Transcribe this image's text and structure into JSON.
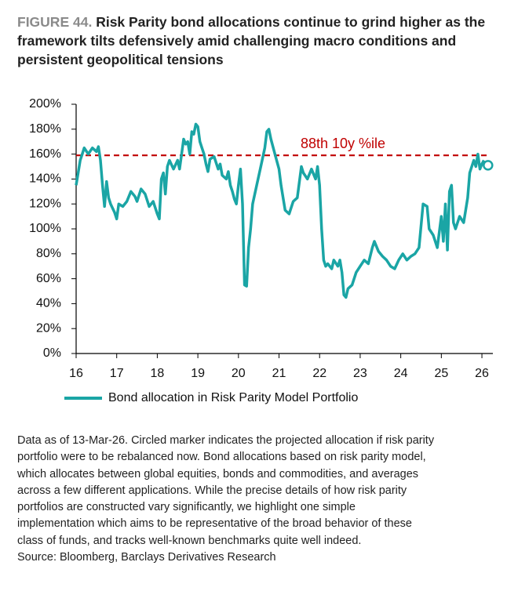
{
  "chart_data": {
    "type": "line",
    "title_label": "FIGURE 44.",
    "title": "Risk Parity bond allocations continue to grind higher as the framework tilts defensively amid challenging macro conditions and persistent geopolitical tensions",
    "xlim": [
      16,
      26.27
    ],
    "xticks": [
      16,
      17,
      18,
      19,
      20,
      21,
      22,
      23,
      24,
      25,
      26
    ],
    "ylim": [
      0,
      200
    ],
    "yticks": [
      {
        "value": 0,
        "label": "0%"
      },
      {
        "value": 20,
        "label": "20%"
      },
      {
        "value": 40,
        "label": "40%"
      },
      {
        "value": 60,
        "label": "60%"
      },
      {
        "value": 80,
        "label": "80%"
      },
      {
        "value": 100,
        "label": "100%"
      },
      {
        "value": 120,
        "label": "120%"
      },
      {
        "value": 140,
        "label": "140%"
      },
      {
        "value": 160,
        "label": "160%"
      },
      {
        "value": 180,
        "label": "180%"
      },
      {
        "value": 200,
        "label": "200%"
      }
    ],
    "series": [
      {
        "name": "Bond allocation in Risk Parity Model Portfolio",
        "color": "#1aa5a5",
        "x": [
          16.0,
          16.05,
          16.1,
          16.15,
          16.2,
          16.3,
          16.4,
          16.5,
          16.55,
          16.6,
          16.65,
          16.7,
          16.75,
          16.8,
          16.85,
          16.95,
          17.0,
          17.05,
          17.15,
          17.25,
          17.35,
          17.45,
          17.5,
          17.6,
          17.7,
          17.8,
          17.9,
          18.0,
          18.05,
          18.1,
          18.15,
          18.2,
          18.25,
          18.3,
          18.4,
          18.5,
          18.55,
          18.6,
          18.65,
          18.7,
          18.75,
          18.8,
          18.85,
          18.9,
          18.95,
          19.0,
          19.05,
          19.1,
          19.15,
          19.2,
          19.25,
          19.3,
          19.4,
          19.5,
          19.55,
          19.6,
          19.7,
          19.75,
          19.8,
          19.85,
          19.9,
          19.95,
          20.0,
          20.05,
          20.1,
          20.15,
          20.2,
          20.25,
          20.3,
          20.35,
          20.45,
          20.55,
          20.65,
          20.7,
          20.75,
          20.8,
          20.9,
          21.0,
          21.05,
          21.1,
          21.15,
          21.25,
          21.35,
          21.45,
          21.55,
          21.6,
          21.7,
          21.8,
          21.9,
          21.95,
          22.0,
          22.05,
          22.1,
          22.15,
          22.2,
          22.3,
          22.35,
          22.45,
          22.5,
          22.55,
          22.6,
          22.65,
          22.7,
          22.8,
          22.9,
          23.0,
          23.1,
          23.2,
          23.3,
          23.35,
          23.45,
          23.55,
          23.65,
          23.75,
          23.85,
          23.95,
          24.05,
          24.15,
          24.25,
          24.35,
          24.45,
          24.55,
          24.65,
          24.7,
          24.8,
          24.9,
          25.0,
          25.05,
          25.1,
          25.15,
          25.2,
          25.25,
          25.3,
          25.35,
          25.45,
          25.55,
          25.65,
          25.7,
          25.8,
          25.85,
          25.9,
          25.95,
          26.0,
          26.05
        ],
        "values": [
          135,
          145,
          155,
          160,
          165,
          160,
          165,
          162,
          166,
          155,
          135,
          118,
          138,
          125,
          120,
          113,
          108,
          120,
          118,
          122,
          130,
          126,
          122,
          132,
          128,
          118,
          122,
          112,
          108,
          140,
          145,
          128,
          150,
          155,
          148,
          155,
          148,
          160,
          172,
          168,
          170,
          160,
          178,
          176,
          184,
          182,
          170,
          165,
          160,
          152,
          146,
          156,
          158,
          148,
          152,
          143,
          140,
          146,
          135,
          130,
          124,
          120,
          135,
          148,
          120,
          55,
          54,
          85,
          100,
          120,
          135,
          150,
          165,
          178,
          180,
          172,
          160,
          148,
          135,
          125,
          115,
          112,
          122,
          125,
          150,
          145,
          140,
          148,
          140,
          150,
          135,
          100,
          75,
          70,
          72,
          68,
          75,
          70,
          75,
          65,
          47,
          45,
          52,
          55,
          65,
          70,
          75,
          72,
          85,
          90,
          82,
          78,
          75,
          70,
          68,
          75,
          80,
          75,
          78,
          80,
          85,
          120,
          118,
          100,
          95,
          85,
          110,
          90,
          120,
          83,
          130,
          135,
          105,
          100,
          110,
          105,
          125,
          145,
          155,
          150,
          160,
          148,
          152,
          155
        ]
      }
    ],
    "marker": {
      "x": 26.15,
      "y": 151
    },
    "ref_line": {
      "value": 159,
      "label": "88th 10y %ile",
      "color": "#c00000"
    },
    "notes": [
      "Data as of 13-Mar-26. Circled marker indicates the projected allocation if risk parity",
      "portfolio were to be rebalanced now. Bond allocations based on risk parity model,",
      "which allocates between global equities, bonds and commodities, and averages",
      "across a few different applications. While the precise details of how risk parity",
      "portfolios are constructed vary significantly, we highlight one simple",
      "implementation which aims to be representative of the broad behavior of these",
      "class of funds, and tracks well-known benchmarks quite well indeed."
    ],
    "source": "Source: Bloomberg, Barclays Derivatives Research"
  }
}
